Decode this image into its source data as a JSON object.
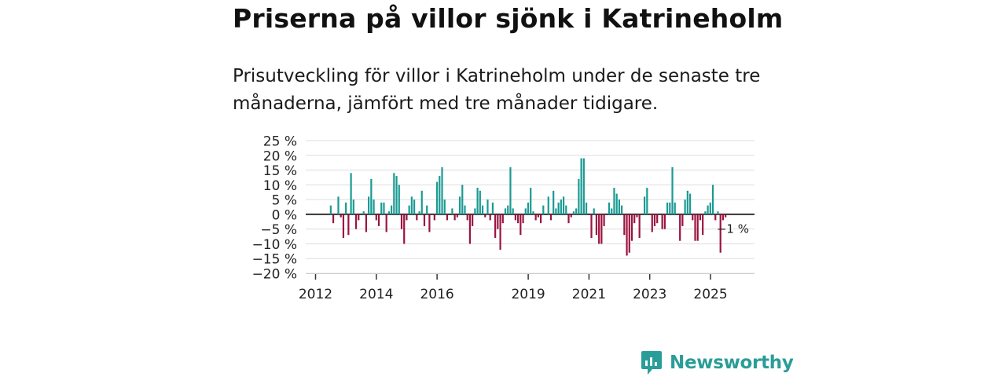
{
  "title": "Priserna på villor sjönk i Katrineholm",
  "subtitle": "Prisutveckling för villor i Katrineholm under de senaste tre månaderna, jämfört med tre månader tidigare.",
  "brand": {
    "name": "Newsworthy"
  },
  "colors": {
    "positive": "#1a9a93",
    "negative": "#9b1440",
    "grid": "#dddddd",
    "axis": "#333333",
    "brand": "#2a9d98"
  },
  "chart_data": {
    "type": "bar",
    "title": "Priserna på villor sjönk i Katrineholm",
    "xlabel": "",
    "ylabel": "",
    "ylim": [
      -20,
      25
    ],
    "xlim": [
      2012.0,
      2026.5
    ],
    "y_ticks": [
      25,
      20,
      15,
      10,
      5,
      0,
      -5,
      -10,
      -15,
      -20
    ],
    "y_tick_labels": [
      "25 %",
      "20 %",
      "15 %",
      "10 %",
      "5 %",
      "0 %",
      "−5 %",
      "−10 %",
      "−15 %",
      "−20 %"
    ],
    "x_ticks": [
      2012,
      2014,
      2016,
      2019,
      2021,
      2023,
      2025
    ],
    "x_tick_labels": [
      "2012",
      "2014",
      "2016",
      "2019",
      "2021",
      "2023",
      "2025"
    ],
    "last_value_label": "−1 %",
    "series": [
      {
        "name": "Prisutveckling",
        "start": 2012.5,
        "step_years": 0.0833,
        "values": [
          3,
          -3,
          0,
          6,
          -1,
          -8,
          4,
          -7,
          14,
          5,
          -5,
          -2,
          0,
          1,
          -6,
          6,
          12,
          5,
          -2,
          -4,
          4,
          4,
          -6,
          1,
          3,
          14,
          13,
          10,
          -5,
          -10,
          -2,
          3,
          6,
          5,
          -2,
          1,
          8,
          -4,
          3,
          -6,
          0,
          -2,
          11,
          13,
          16,
          5,
          -2,
          0,
          2,
          -2,
          -1,
          6,
          10,
          3,
          -2,
          -10,
          -4,
          2,
          9,
          8,
          3,
          -1,
          5,
          -2,
          4,
          -8,
          -5,
          -12,
          -3,
          2,
          3,
          16,
          2,
          -2,
          -3,
          -7,
          -3,
          2,
          4,
          9,
          1,
          -2,
          -1,
          -3,
          3,
          0,
          6,
          -2,
          8,
          2,
          4,
          5,
          6,
          3,
          -3,
          -1,
          1,
          2,
          12,
          19,
          19,
          4,
          0,
          -8,
          2,
          -7,
          -10,
          -10,
          -4,
          0,
          4,
          2,
          9,
          7,
          5,
          3,
          -7,
          -14,
          -13,
          -9,
          -3,
          -1,
          -8,
          0,
          6,
          9,
          0,
          -6,
          -4,
          -3,
          0,
          -5,
          -5,
          4,
          4,
          16,
          4,
          0,
          -9,
          -4,
          5,
          8,
          7,
          -2,
          -9,
          -9,
          -2,
          -7,
          1,
          3,
          4,
          10,
          -2,
          1,
          -13,
          -2,
          -1
        ]
      }
    ]
  }
}
